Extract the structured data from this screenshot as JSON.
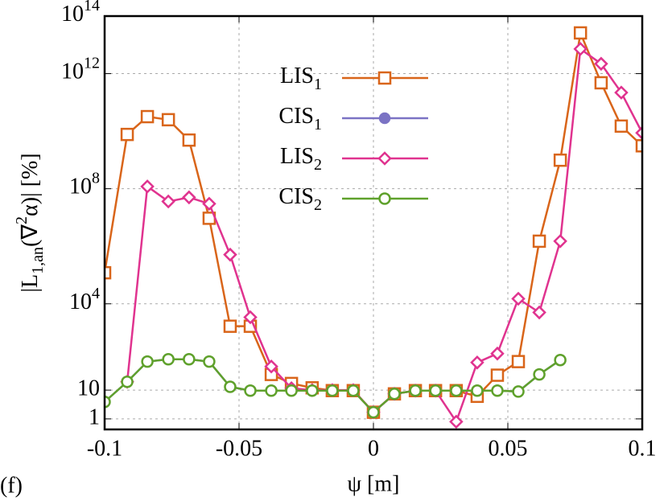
{
  "chart_data": {
    "type": "line",
    "log_y": true,
    "grid": true,
    "annotation": "(f)",
    "xlabel": "ψ [m]",
    "ylabel": {
      "pre": "|L",
      "sub": "1,an",
      "mid": "(∇",
      "sup": "2",
      "post": "α)| [%]"
    },
    "xlim": [
      -0.1,
      0.1
    ],
    "xticks": [
      -0.1,
      -0.05,
      0,
      0.05,
      0.1
    ],
    "ylim": [
      0.43,
      100000000000000.0
    ],
    "yticks": [
      1,
      10,
      {
        "value": 10000,
        "label": "10",
        "exponent": "4"
      },
      {
        "value": 100000000,
        "label": "10",
        "exponent": "8"
      },
      {
        "value": 1000000000000.0,
        "label": "10",
        "exponent": "12"
      },
      {
        "value": 100000000000000.0,
        "label": "10",
        "exponent": "14"
      }
    ],
    "x": [
      -0.1,
      -0.0916,
      -0.0841,
      -0.0763,
      -0.0686,
      -0.0611,
      -0.0533,
      -0.0458,
      -0.038,
      -0.0305,
      -0.0228,
      -0.0153,
      -0.0075,
      0.0,
      0.0078,
      0.0156,
      0.0231,
      0.0308,
      0.0386,
      0.0461,
      0.0539,
      0.0617,
      0.0695,
      0.077,
      0.0847,
      0.0922,
      0.1
    ],
    "series": [
      {
        "name": "LIS",
        "name_sub": "1",
        "color": "#d9651a",
        "marker": "square",
        "values": [
          120000,
          7700000000,
          32000000000,
          25000000000,
          4900000000,
          9400000,
          1660,
          1660,
          35,
          17,
          12,
          9.6,
          9.6,
          1.7,
          7.4,
          9.6,
          9.6,
          9.6,
          6.1,
          33,
          98,
          1500000,
          980000000,
          26000000000000,
          480000000000,
          15000000000,
          3100000000
        ]
      },
      {
        "name": "CIS",
        "name_sub": "1",
        "color": "#7b73c4",
        "marker": "dot",
        "values": [
          3.9,
          19.5,
          98,
          118,
          118,
          98,
          13,
          9.6,
          9.6,
          9.6,
          9.6,
          9.6,
          9.6,
          1.7,
          7.4,
          9.6,
          9.6,
          9.6,
          9.6,
          9.6,
          8.9,
          35,
          111,
          null,
          null,
          null,
          null
        ]
      },
      {
        "name": "LIS",
        "name_sub": "2",
        "color": "#e0338f",
        "marker": "diamond",
        "values": [
          null,
          19.5,
          120000000,
          36000000,
          50000000,
          30000000,
          510000,
          3400,
          66,
          11.6,
          10,
          10,
          10,
          1.7,
          7.4,
          9.6,
          9.6,
          0.8,
          91,
          186,
          15000,
          5000,
          1500000,
          7200000000000,
          2200000000000,
          220000000000,
          8700000000
        ]
      },
      {
        "name": "CIS",
        "name_sub": "2",
        "color": "#5fa12c",
        "marker": "circle",
        "values": [
          3.9,
          19.5,
          98,
          118,
          118,
          98,
          13,
          9.6,
          9.6,
          9.6,
          9.6,
          9.6,
          9.6,
          1.7,
          7.4,
          9.6,
          9.6,
          9.6,
          9.6,
          9.6,
          8.9,
          35,
          111,
          null,
          null,
          null,
          null
        ]
      }
    ]
  }
}
